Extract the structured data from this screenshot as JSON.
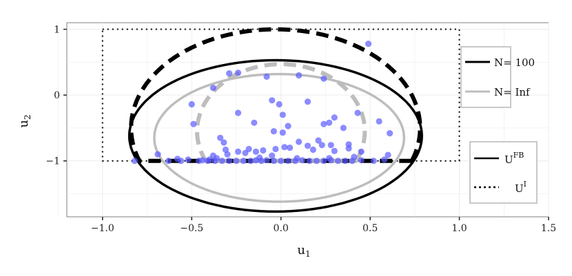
{
  "chart_data": {
    "type": "scatter",
    "title": "",
    "xlabel": "u",
    "xlabel_sub": "1",
    "ylabel": "u",
    "ylabel_sub": "2",
    "xlim": [
      -1.2,
      1.5
    ],
    "ylim": [
      -1.85,
      1.1
    ],
    "x_ticks": [
      -1.0,
      -0.5,
      0.0,
      0.5,
      1.0,
      1.5
    ],
    "x_tick_labels": [
      "−1.0",
      "−0.5",
      "0.0",
      "0.5",
      "1.0",
      "1.5"
    ],
    "y_ticks": [
      1,
      0,
      -1
    ],
    "y_tick_labels": [
      "1",
      "0",
      "−1"
    ],
    "grid": true,
    "point_color": "#5b5bff",
    "points": [
      [
        0.49,
        0.78
      ],
      [
        0.24,
        0.25
      ],
      [
        0.1,
        0.3
      ],
      [
        -0.08,
        0.28
      ],
      [
        -0.24,
        0.34
      ],
      [
        -0.29,
        0.33
      ],
      [
        -0.38,
        0.11
      ],
      [
        -0.24,
        -0.27
      ],
      [
        -0.5,
        -0.14
      ],
      [
        -0.49,
        -0.44
      ],
      [
        -0.34,
        -0.65
      ],
      [
        -0.32,
        -0.72
      ],
      [
        -0.15,
        -0.42
      ],
      [
        0.01,
        -0.57
      ],
      [
        -0.04,
        -0.55
      ],
      [
        -0.01,
        -0.14
      ],
      [
        -0.05,
        -0.08
      ],
      [
        0.01,
        -0.3
      ],
      [
        0.04,
        -0.47
      ],
      [
        0.15,
        -0.1
      ],
      [
        0.3,
        -0.34
      ],
      [
        0.24,
        -0.44
      ],
      [
        0.27,
        -0.42
      ],
      [
        0.43,
        -0.27
      ],
      [
        0.35,
        -0.5
      ],
      [
        0.55,
        -0.4
      ],
      [
        0.61,
        -0.58
      ],
      [
        0.6,
        -0.91
      ],
      [
        0.58,
        -0.98
      ],
      [
        0.45,
        -0.86
      ],
      [
        0.41,
        -0.94
      ],
      [
        0.38,
        -0.75
      ],
      [
        0.38,
        -0.81
      ],
      [
        0.3,
        -0.85
      ],
      [
        0.28,
        -0.76
      ],
      [
        0.21,
        -0.69
      ],
      [
        0.23,
        -0.76
      ],
      [
        0.18,
        -0.83
      ],
      [
        0.15,
        -0.77
      ],
      [
        0.1,
        -0.71
      ],
      [
        0.05,
        -0.8
      ],
      [
        0.02,
        -0.79
      ],
      [
        -0.03,
        -0.82
      ],
      [
        -0.05,
        -0.92
      ],
      [
        -0.1,
        -0.84
      ],
      [
        -0.14,
        -0.86
      ],
      [
        -0.18,
        -0.82
      ],
      [
        -0.2,
        -0.88
      ],
      [
        -0.24,
        -0.86
      ],
      [
        -0.3,
        -0.9
      ],
      [
        -0.31,
        -0.83
      ],
      [
        -0.38,
        -0.92
      ],
      [
        -0.4,
        -0.98
      ],
      [
        -0.44,
        -0.99
      ],
      [
        -0.52,
        -0.98
      ],
      [
        -0.56,
        -1.0
      ],
      [
        -0.63,
        -1.0
      ],
      [
        -0.69,
        -0.9
      ],
      [
        -0.82,
        -1.0
      ],
      [
        -0.46,
        -1.0
      ],
      [
        -0.41,
        -1.0
      ],
      [
        -0.37,
        -1.0
      ],
      [
        -0.33,
        -1.0
      ],
      [
        -0.29,
        -1.0
      ],
      [
        -0.25,
        -1.0
      ],
      [
        -0.21,
        -1.0
      ],
      [
        -0.17,
        -1.0
      ],
      [
        -0.14,
        -0.99
      ],
      [
        -0.11,
        -1.0
      ],
      [
        -0.08,
        -0.99
      ],
      [
        -0.04,
        -1.0
      ],
      [
        0.0,
        -1.0
      ],
      [
        0.04,
        -1.0
      ],
      [
        0.08,
        -1.0
      ],
      [
        0.12,
        -0.99
      ],
      [
        0.16,
        -1.0
      ],
      [
        0.2,
        -1.0
      ],
      [
        0.24,
        -1.0
      ],
      [
        0.28,
        -0.99
      ],
      [
        0.32,
        -1.0
      ],
      [
        0.36,
        -1.0
      ],
      [
        0.4,
        -1.0
      ],
      [
        0.45,
        -0.99
      ],
      [
        0.52,
        -1.0
      ],
      [
        -0.36,
        -0.96
      ],
      [
        -0.12,
        -0.95
      ],
      [
        0.09,
        -0.96
      ],
      [
        0.27,
        -0.96
      ],
      [
        -0.58,
        -0.97
      ]
    ],
    "region_box": {
      "x": [
        -1.0,
        1.0
      ],
      "y": [
        -1.0,
        1.0
      ]
    },
    "ellipses": [
      {
        "legend": "n",
        "cx": -0.03,
        "cy": -0.62,
        "rx": 0.82,
        "ry": 1.15,
        "color": "#000000",
        "dashed": false
      },
      {
        "legend": "n",
        "cx": -0.01,
        "cy": -0.65,
        "rx": 0.7,
        "ry": 0.97,
        "color": "#bdbdbd",
        "dashed": false
      },
      {
        "legend": "f",
        "cx": -0.03,
        "cy": -0.5,
        "rx": 0.81,
        "ry": 1.5,
        "color": "#000000",
        "dashed": true,
        "clip_y": -1.0
      },
      {
        "legend": "f",
        "cx": 0.0,
        "cy": -0.55,
        "rx": 0.47,
        "ry": 1.02,
        "color": "#bdbdbd",
        "dashed": true,
        "clip_y": -1.0
      }
    ],
    "legends": [
      {
        "placement": "right-top",
        "entries": [
          {
            "label": "N= 100",
            "color": "#000000"
          },
          {
            "label": "N= Inf",
            "color": "#bdbdbd"
          }
        ]
      },
      {
        "placement": "right-bottom",
        "entries": [
          {
            "label": "U",
            "sup": "FB",
            "style": "solid"
          },
          {
            "label": "U",
            "sup": "I",
            "style": "dotted"
          }
        ]
      }
    ]
  }
}
